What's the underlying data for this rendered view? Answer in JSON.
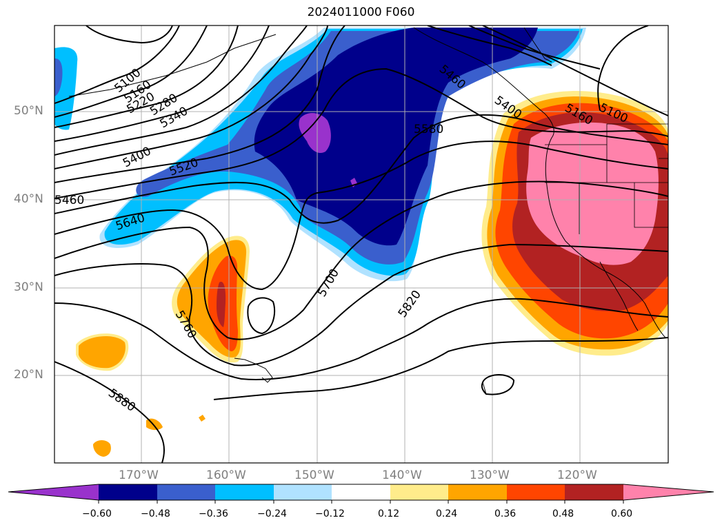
{
  "title": "2024011000 F060",
  "latitude_labels": [
    "50°N",
    "40°N",
    "30°N",
    "20°N"
  ],
  "longitude_labels": [
    "170°W",
    "160°W",
    "150°W",
    "140°W",
    "130°W",
    "120°W"
  ],
  "contour_labels": [
    "5100",
    "5160",
    "5220",
    "5280",
    "5340",
    "5400",
    "5460",
    "5520",
    "5580",
    "5640",
    "5700",
    "5760",
    "5820",
    "5880",
    "5460",
    "5400",
    "5160",
    "5100"
  ],
  "colorbar": {
    "colors": [
      "#9932cc",
      "#00008b",
      "#3a5fcd",
      "#00bfff",
      "#b0e2ff",
      "#ffffff",
      "#ffec8b",
      "#ffa500",
      "#ff4500",
      "#b22222",
      "#ff82ab"
    ],
    "tick_labels": [
      "−0.60",
      "−0.48",
      "−0.36",
      "−0.24",
      "−0.12",
      "0.12",
      "0.24",
      "0.36",
      "0.48",
      "0.60"
    ]
  }
}
